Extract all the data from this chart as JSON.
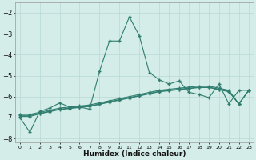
{
  "x": [
    0,
    1,
    2,
    3,
    4,
    5,
    6,
    7,
    8,
    9,
    10,
    11,
    12,
    13,
    14,
    15,
    16,
    17,
    18,
    19,
    20,
    21,
    22,
    23
  ],
  "line1": [
    -7.0,
    -7.7,
    -6.7,
    -6.55,
    -6.3,
    -6.5,
    -6.5,
    -6.6,
    -4.8,
    -3.35,
    -3.35,
    -2.2,
    -3.1,
    -4.85,
    -5.2,
    -5.4,
    -5.25,
    -5.8,
    -5.9,
    -6.05,
    -5.4,
    -6.35,
    -5.7,
    -5.7
  ],
  "line2": [
    -6.85,
    -6.85,
    -6.75,
    -6.65,
    -6.55,
    -6.5,
    -6.45,
    -6.4,
    -6.3,
    -6.2,
    -6.1,
    -6.0,
    -5.9,
    -5.8,
    -5.7,
    -5.65,
    -5.6,
    -5.55,
    -5.5,
    -5.5,
    -5.6,
    -5.7,
    -6.35,
    -5.7
  ],
  "line3": [
    -6.9,
    -6.9,
    -6.8,
    -6.7,
    -6.6,
    -6.55,
    -6.5,
    -6.45,
    -6.35,
    -6.25,
    -6.15,
    -6.05,
    -5.95,
    -5.85,
    -5.75,
    -5.7,
    -5.65,
    -5.6,
    -5.55,
    -5.55,
    -5.65,
    -5.75,
    -6.35,
    -5.7
  ],
  "line4": [
    -6.95,
    -6.95,
    -6.82,
    -6.72,
    -6.62,
    -6.57,
    -6.52,
    -6.47,
    -6.37,
    -6.27,
    -6.17,
    -6.07,
    -5.97,
    -5.87,
    -5.77,
    -5.72,
    -5.67,
    -5.62,
    -5.57,
    -5.57,
    -5.67,
    -5.77,
    -6.35,
    -5.7
  ],
  "line_color": "#2e7d6e",
  "bg_color": "#d4ede9",
  "grid_color": "#b8d8d4",
  "xlabel": "Humidex (Indice chaleur)",
  "ylim": [
    -8.2,
    -1.5
  ],
  "xlim": [
    -0.5,
    23.5
  ],
  "yticks": [
    -8,
    -7,
    -6,
    -5,
    -4,
    -3,
    -2
  ],
  "marker": "+"
}
